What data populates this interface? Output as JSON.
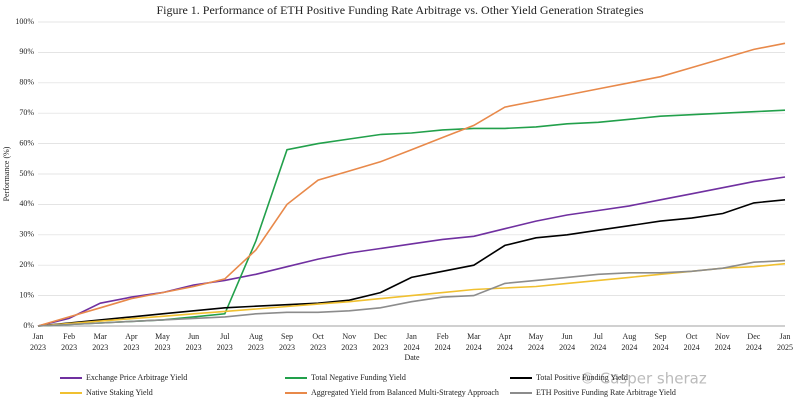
{
  "chart_data": {
    "type": "line",
    "title": "Figure 1. Performance of ETH Positive Funding Rate Arbitrage vs. Other Yield Generation Strategies",
    "x_label": "Date",
    "y_label": "Performance (%)",
    "watermark": "© Casper sheraz",
    "categories": [
      "Jan 2023",
      "Feb 2023",
      "Mar 2023",
      "Apr 2023",
      "May 2023",
      "Jun 2023",
      "Jul 2023",
      "Aug 2023",
      "Sep 2023",
      "Oct 2023",
      "Nov 2023",
      "Dec 2023",
      "Jan 2024",
      "Feb 2024",
      "Mar 2024",
      "Apr 2024",
      "May 2024",
      "Jun 2024",
      "Jul 2024",
      "Aug 2024",
      "Sep 2024",
      "Oct 2024",
      "Nov 2024",
      "Dec 2024",
      "Jan 2025"
    ],
    "ylim": [
      0,
      100
    ],
    "yticks": [
      {
        "value": 0,
        "label": "0%"
      },
      {
        "value": 10,
        "label": "10%"
      },
      {
        "value": 20,
        "label": "20%"
      },
      {
        "value": 30,
        "label": "30%"
      },
      {
        "value": 40,
        "label": "40%"
      },
      {
        "value": 50,
        "label": "50%"
      },
      {
        "value": 60,
        "label": "60%"
      },
      {
        "value": 70,
        "label": "70%"
      },
      {
        "value": 80,
        "label": "80%"
      },
      {
        "value": 90,
        "label": "90%"
      },
      {
        "value": 100,
        "label": "100%"
      }
    ],
    "grid": true,
    "series": [
      {
        "name": "Exchange Price Arbitrage Yield",
        "color": "#7030a0",
        "values": [
          0,
          2.5,
          7.5,
          9.5,
          11,
          13.5,
          15,
          17,
          19.5,
          22,
          24,
          25.5,
          27,
          28.5,
          29.5,
          32,
          34.5,
          36.5,
          38,
          39.5,
          41.5,
          43.5,
          45.5,
          47.5,
          49
        ]
      },
      {
        "name": "Total Negative Funding Yield",
        "color": "#22a04b",
        "values": [
          0,
          0.5,
          1,
          1.5,
          2,
          3,
          4,
          28,
          58,
          60,
          61.5,
          63,
          63.5,
          64.5,
          65,
          65,
          65.5,
          66.5,
          67,
          68,
          69,
          69.5,
          70,
          70.5,
          71
        ]
      },
      {
        "name": "Total Positive Funding Yield",
        "color": "#000000",
        "values": [
          0,
          1,
          2,
          3,
          4,
          5,
          6,
          6.5,
          7,
          7.5,
          8.5,
          11,
          16,
          18,
          20,
          26.5,
          29,
          30,
          31.5,
          33,
          34.5,
          35.5,
          37,
          40.5,
          41.5
        ]
      },
      {
        "name": "Native Staking Yield",
        "color": "#f0c030",
        "values": [
          0,
          0.8,
          1.6,
          2.4,
          3.2,
          4,
          4.8,
          5.6,
          6.4,
          7.2,
          8,
          9,
          10,
          11,
          12,
          12.5,
          13,
          14,
          15,
          16,
          17,
          18,
          19,
          19.5,
          20.5
        ]
      },
      {
        "name": "Aggregated Yield from Balanced Multi-Strategy Approach",
        "color": "#e8894a",
        "values": [
          0,
          3,
          6,
          9,
          11,
          13,
          15.5,
          25,
          40,
          48,
          51,
          54,
          58,
          62,
          66,
          72,
          74,
          76,
          78,
          80,
          82,
          85,
          88,
          91,
          93
        ]
      },
      {
        "name": "ETH Positive Funding Rate Arbitrage Yield",
        "color": "#8c8c8c",
        "values": [
          0,
          0.5,
          1,
          1.5,
          2,
          2.5,
          3,
          4,
          4.5,
          4.5,
          5,
          6,
          8,
          9.5,
          10,
          14,
          15,
          16,
          17,
          17.5,
          17.5,
          18,
          19,
          21,
          21.5
        ]
      }
    ]
  }
}
